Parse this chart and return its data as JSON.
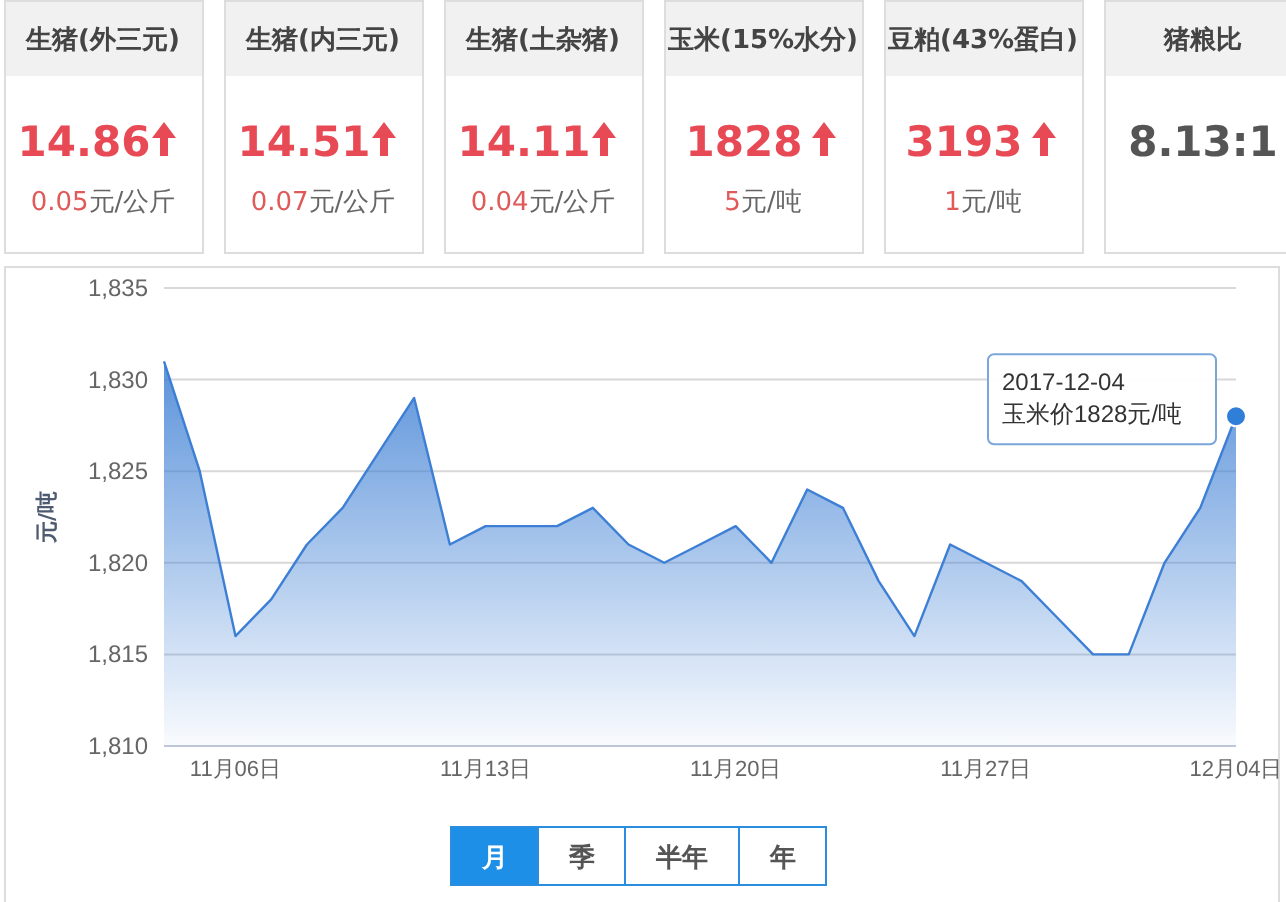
{
  "chart_data": [
    {
      "type": "other",
      "categories": [
        "生猪(外三元)",
        "生猪(内三元)",
        "生猪(土杂猪)",
        "玉米(15%水分)",
        "豆粕(43%蛋白)",
        "猪粮比"
      ],
      "value_labels": [
        "14.86",
        "14.51",
        "14.11",
        "1828",
        "3193",
        "8.13:1"
      ],
      "annotations": [
        "0.05元/公斤",
        "0.07元/公斤",
        "0.04元/公斤",
        "5元/吨",
        "1元/吨"
      ]
    },
    {
      "type": "area",
      "ylabel": "元/吨",
      "x": [
        "2017-11-04",
        "2017-11-05",
        "2017-11-06",
        "2017-11-07",
        "2017-11-08",
        "2017-11-09",
        "2017-11-10",
        "2017-11-11",
        "2017-11-12",
        "2017-11-13",
        "2017-11-14",
        "2017-11-15",
        "2017-11-16",
        "2017-11-17",
        "2017-11-18",
        "2017-11-19",
        "2017-11-20",
        "2017-11-21",
        "2017-11-22",
        "2017-11-23",
        "2017-11-24",
        "2017-11-25",
        "2017-11-26",
        "2017-11-27",
        "2017-11-28",
        "2017-11-29",
        "2017-11-30",
        "2017-12-01",
        "2017-12-02",
        "2017-12-03",
        "2017-12-04"
      ],
      "series": [
        {
          "color": "#3d7fd4",
          "values": [
            1831,
            1825,
            1816,
            1818,
            1821,
            1823,
            1826,
            1829,
            1821,
            1822,
            1822,
            1822,
            1823,
            1821,
            1820,
            1821,
            1822,
            1820,
            1824,
            1823,
            1819,
            1816,
            1821,
            1820,
            1819,
            1817,
            1815,
            1815,
            1820,
            1823,
            1828
          ]
        },
        {
          "type": "scatter",
          "color": "#2f7ed8",
          "x": [
            "2017-12-04"
          ],
          "values": [
            1828
          ]
        }
      ],
      "xlim": [
        "2017-11-04",
        "2017-12-04"
      ],
      "xticks": [
        {
          "value": "2017-11-06",
          "label": "11月06日"
        },
        {
          "value": "2017-11-13",
          "label": "11月13日"
        },
        {
          "value": "2017-11-20",
          "label": "11月20日"
        },
        {
          "value": "2017-11-27",
          "label": "11月27日"
        },
        {
          "value": "2017-12-04",
          "label": "12月04日"
        }
      ],
      "ylim": [
        1810,
        1835
      ],
      "yticks": [
        {
          "value": 1810,
          "label": "1,810"
        },
        {
          "value": 1815,
          "label": "1,815"
        },
        {
          "value": 1820,
          "label": "1,820"
        },
        {
          "value": 1825,
          "label": "1,825"
        },
        {
          "value": 1830,
          "label": "1,830"
        },
        {
          "value": 1835,
          "label": "1,835"
        }
      ],
      "grid": "y",
      "annotations": [
        {
          "text": "2017-12-04\n玉米价1828元/吨",
          "x": "2017-12-04",
          "y": 1828
        },
        "月",
        "季",
        "半年",
        "年"
      ]
    }
  ]
}
